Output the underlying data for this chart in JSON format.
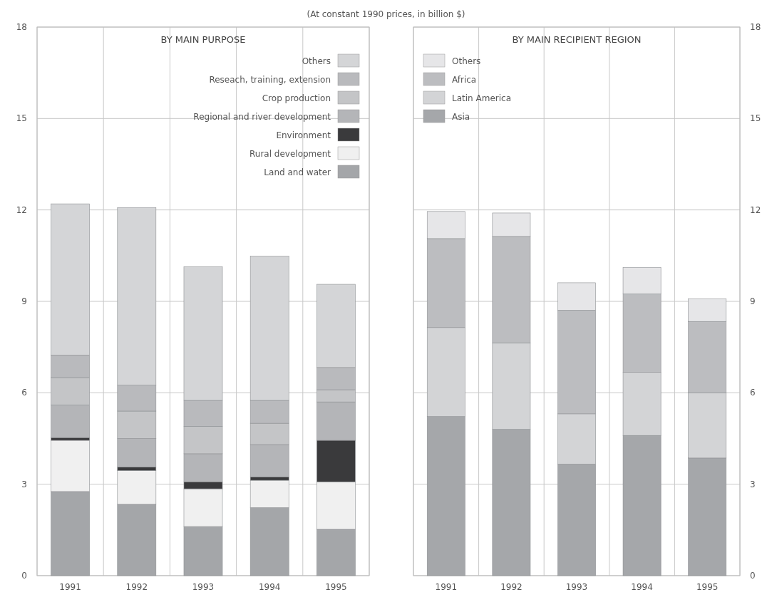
{
  "chart_data": [
    {
      "type": "bar",
      "title": "BY MAIN PURPOSE",
      "subtitle": "(At constant 1990 prices, in billion $)",
      "categories": [
        "1991",
        "1992",
        "1993",
        "1994",
        "1995"
      ],
      "stacked": true,
      "ylim": [
        0,
        18
      ],
      "yticks": [
        0,
        3,
        6,
        9,
        12,
        15,
        18
      ],
      "grid": true,
      "legend": "top right",
      "series": [
        {
          "name": "Land and water",
          "color": "#a4a6a9",
          "values": [
            2.76,
            2.34,
            1.61,
            2.23,
            1.52
          ]
        },
        {
          "name": "Rural development",
          "color": "#f0f0f0",
          "values": [
            1.68,
            1.11,
            1.24,
            0.9,
            1.56
          ]
        },
        {
          "name": "Environment",
          "color": "#3a3a3c",
          "values": [
            0.09,
            0.11,
            0.23,
            0.11,
            1.36
          ]
        },
        {
          "name": "Regional and river development",
          "color": "#b4b5b8",
          "values": [
            1.07,
            0.94,
            0.92,
            1.06,
            1.26
          ]
        },
        {
          "name": "Crop production",
          "color": "#c4c5c7",
          "values": [
            0.9,
            0.9,
            0.9,
            0.7,
            0.4
          ]
        },
        {
          "name": "Reseach, training, extension",
          "color": "#b9babd",
          "values": [
            0.74,
            0.85,
            0.85,
            0.75,
            0.73
          ]
        },
        {
          "name": "Others",
          "color": "#d4d5d7",
          "values": [
            4.96,
            5.82,
            4.39,
            4.73,
            2.73
          ]
        }
      ]
    },
    {
      "type": "bar",
      "title": "BY MAIN RECIPIENT REGION",
      "categories": [
        "1991",
        "1992",
        "1993",
        "1994",
        "1995"
      ],
      "stacked": true,
      "ylim": [
        0,
        18
      ],
      "yticks": [
        0,
        3,
        6,
        9,
        12,
        15,
        18
      ],
      "grid": true,
      "legend": "top left",
      "series": [
        {
          "name": "Asia",
          "color": "#a5a7aa",
          "values": [
            5.22,
            4.8,
            3.66,
            4.6,
            3.86
          ]
        },
        {
          "name": "Latin America",
          "color": "#d3d4d6",
          "values": [
            2.92,
            2.84,
            1.65,
            2.07,
            2.14
          ]
        },
        {
          "name": "Africa",
          "color": "#bcbdc0",
          "values": [
            2.92,
            3.49,
            3.4,
            2.57,
            2.34
          ]
        },
        {
          "name": "Others",
          "color": "#e6e6e8",
          "values": [
            0.89,
            0.77,
            0.9,
            0.87,
            0.74
          ]
        }
      ]
    }
  ]
}
